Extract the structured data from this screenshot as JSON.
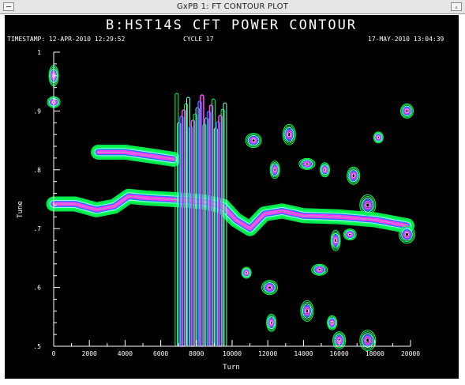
{
  "window": {
    "title": "GxPB 1: FT CONTOUR PLOT"
  },
  "header": {
    "plot_title": "B:HST14S CFT POWER CONTOUR",
    "timestamp_label": "TIMESTAMP: 12-APR-2010 12:29:52",
    "cycle_label": "CYCLE 17",
    "right_timestamp": "17-MAY-2010 13:04:39"
  },
  "colors": {
    "background": "#000000",
    "contour_outer": "#00ff55",
    "contour_mid": "#8fffe0",
    "contour_blue": "#2a6cff",
    "contour_magenta": "#ff3cff",
    "contour_core": "#ffffff"
  },
  "chart_data": {
    "type": "contour",
    "title": "B:HST14S CFT POWER CONTOUR",
    "xlabel": "Turn",
    "ylabel": "Tune",
    "xlim": [
      0,
      20000
    ],
    "ylim": [
      0.5,
      1.0
    ],
    "x_ticks": [
      "0",
      "2000",
      "4000",
      "6000",
      "8000",
      "10000",
      "12000",
      "14000",
      "16000",
      "18000",
      "20000"
    ],
    "y_ticks": [
      ".5",
      ".6",
      ".7",
      ".8",
      ".9",
      "1"
    ],
    "features": [
      {
        "kind": "ridge",
        "points": [
          [
            0,
            0.742
          ],
          [
            1200,
            0.742
          ],
          [
            2400,
            0.732
          ],
          [
            3400,
            0.738
          ],
          [
            4200,
            0.755
          ],
          [
            5200,
            0.752
          ],
          [
            6400,
            0.75
          ],
          [
            7500,
            0.748
          ],
          [
            8500,
            0.745
          ],
          [
            9500,
            0.738
          ],
          [
            10200,
            0.715
          ],
          [
            11000,
            0.7
          ],
          [
            11800,
            0.725
          ],
          [
            12800,
            0.73
          ],
          [
            14000,
            0.722
          ],
          [
            16000,
            0.72
          ],
          [
            18000,
            0.715
          ],
          [
            19800,
            0.705
          ]
        ]
      },
      {
        "kind": "ridge",
        "points": [
          [
            2500,
            0.83
          ],
          [
            4000,
            0.83
          ],
          [
            5600,
            0.823
          ],
          [
            6700,
            0.818
          ]
        ]
      },
      {
        "kind": "band",
        "x_from": 6900,
        "x_to": 9600,
        "y_from": 0.5,
        "y_to": 0.93
      },
      {
        "kind": "blob",
        "x": 0,
        "y": 0.96
      },
      {
        "kind": "blob",
        "x": 0,
        "y": 0.915
      },
      {
        "kind": "blob",
        "x": 11200,
        "y": 0.85
      },
      {
        "kind": "blob",
        "x": 12400,
        "y": 0.8
      },
      {
        "kind": "blob",
        "x": 13200,
        "y": 0.86
      },
      {
        "kind": "blob",
        "x": 14200,
        "y": 0.81
      },
      {
        "kind": "blob",
        "x": 15200,
        "y": 0.8
      },
      {
        "kind": "blob",
        "x": 16800,
        "y": 0.79
      },
      {
        "kind": "blob",
        "x": 17600,
        "y": 0.74
      },
      {
        "kind": "blob",
        "x": 18200,
        "y": 0.855
      },
      {
        "kind": "blob",
        "x": 19800,
        "y": 0.9
      },
      {
        "kind": "blob",
        "x": 19800,
        "y": 0.69
      },
      {
        "kind": "blob",
        "x": 15800,
        "y": 0.68
      },
      {
        "kind": "blob",
        "x": 16600,
        "y": 0.69
      },
      {
        "kind": "blob",
        "x": 12100,
        "y": 0.6
      },
      {
        "kind": "blob",
        "x": 12200,
        "y": 0.54
      },
      {
        "kind": "blob",
        "x": 14200,
        "y": 0.56
      },
      {
        "kind": "blob",
        "x": 14900,
        "y": 0.63
      },
      {
        "kind": "blob",
        "x": 15600,
        "y": 0.54
      },
      {
        "kind": "blob",
        "x": 16000,
        "y": 0.51
      },
      {
        "kind": "blob",
        "x": 17600,
        "y": 0.51
      },
      {
        "kind": "blob",
        "x": 10800,
        "y": 0.625
      }
    ]
  }
}
